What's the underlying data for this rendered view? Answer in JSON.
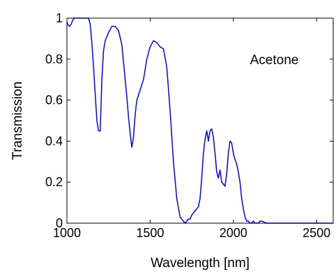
{
  "chart_data": {
    "type": "line",
    "title": "",
    "xlabel": "Wavelength [nm]",
    "ylabel": "Transmission",
    "xlim": [
      1000,
      2600
    ],
    "ylim": [
      0,
      1
    ],
    "x_ticks": [
      1000,
      1500,
      2000,
      2500
    ],
    "x_tick_labels": [
      "1000",
      "1500",
      "2000",
      "2500"
    ],
    "y_ticks": [
      0,
      0.2,
      0.4,
      0.6,
      0.8,
      1
    ],
    "y_tick_labels": [
      "0",
      "0.2",
      "0.4",
      "0.6",
      "0.8",
      "1"
    ],
    "grid": false,
    "annotations": [
      {
        "text": "Acetone",
        "x": 2100,
        "y": 0.8
      }
    ],
    "series": [
      {
        "color": "#0000ff",
        "x": [
          1000,
          1005,
          1015,
          1025,
          1035,
          1045,
          1055,
          1070,
          1090,
          1110,
          1130,
          1140,
          1150,
          1160,
          1170,
          1180,
          1190,
          1200,
          1210,
          1220,
          1230,
          1250,
          1270,
          1290,
          1310,
          1330,
          1350,
          1360,
          1370,
          1380,
          1390,
          1400,
          1410,
          1420,
          1440,
          1460,
          1480,
          1500,
          1520,
          1540,
          1560,
          1580,
          1600,
          1620,
          1640,
          1660,
          1680,
          1700,
          1710,
          1720,
          1730,
          1740,
          1750,
          1760,
          1770,
          1780,
          1790,
          1800,
          1810,
          1820,
          1830,
          1840,
          1850,
          1860,
          1870,
          1880,
          1890,
          1900,
          1910,
          1920,
          1930,
          1940,
          1950,
          1960,
          1970,
          1980,
          1990,
          2000,
          2010,
          2020,
          2030,
          2040,
          2050,
          2060,
          2070,
          2080,
          2090,
          2100,
          2110,
          2120,
          2130,
          2140,
          2150,
          2160,
          2170,
          2200,
          2250,
          2300,
          2350,
          2400,
          2450,
          2500,
          2550,
          2600
        ],
        "y": [
          0.98,
          0.97,
          0.96,
          0.97,
          0.99,
          1.0,
          1.01,
          1.01,
          1.0,
          1.0,
          1.0,
          0.97,
          0.88,
          0.76,
          0.63,
          0.5,
          0.45,
          0.45,
          0.7,
          0.84,
          0.89,
          0.93,
          0.96,
          0.96,
          0.94,
          0.87,
          0.7,
          0.62,
          0.52,
          0.44,
          0.37,
          0.42,
          0.53,
          0.6,
          0.65,
          0.7,
          0.8,
          0.86,
          0.89,
          0.88,
          0.86,
          0.85,
          0.76,
          0.55,
          0.3,
          0.12,
          0.03,
          0.01,
          0.0,
          0.01,
          0.02,
          0.02,
          0.04,
          0.05,
          0.06,
          0.07,
          0.08,
          0.12,
          0.22,
          0.34,
          0.41,
          0.45,
          0.4,
          0.45,
          0.46,
          0.42,
          0.34,
          0.25,
          0.22,
          0.26,
          0.2,
          0.19,
          0.18,
          0.24,
          0.34,
          0.4,
          0.39,
          0.34,
          0.31,
          0.29,
          0.25,
          0.2,
          0.12,
          0.07,
          0.03,
          0.01,
          0.01,
          0.0,
          0.0,
          0.01,
          0.0,
          0.0,
          0.0,
          0.01,
          0.01,
          0.0,
          0.0,
          0.0,
          0.0,
          0.0,
          0.0,
          0.0,
          0.0,
          0.0
        ]
      }
    ]
  }
}
